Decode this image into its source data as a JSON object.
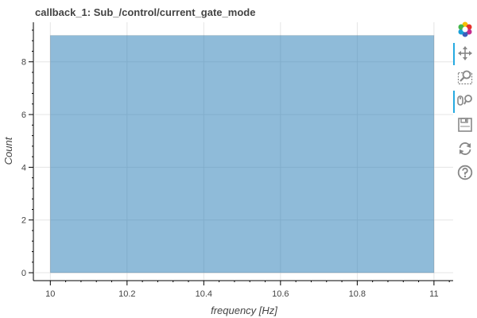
{
  "title": "callback_1: Sub_/control/current_gate_mode",
  "chart_data": {
    "type": "bar",
    "title": "callback_1: Sub_/control/current_gate_mode",
    "xlabel": "frequency [Hz]",
    "ylabel": "Count",
    "bins": [
      {
        "x0": 10,
        "x1": 11,
        "count": 9
      }
    ],
    "xlim": [
      9.96,
      11.05
    ],
    "ylim": [
      -0.3,
      9.5
    ],
    "xticks": [
      10,
      10.2,
      10.4,
      10.6,
      10.8,
      11
    ],
    "xtick_labels": [
      "10",
      "10.2",
      "10.4",
      "10.6",
      "10.8",
      "11"
    ],
    "yticks": [
      0,
      2,
      4,
      6,
      8
    ],
    "ytick_labels": [
      "0",
      "2",
      "4",
      "6",
      "8"
    ],
    "grid": true,
    "bar_color": "#1f77b4",
    "bar_alpha": 0.5
  },
  "toolbar": {
    "tools": [
      {
        "name": "bokeh-logo-icon",
        "active": false,
        "interactable": false
      },
      {
        "name": "pan-icon",
        "active": true,
        "interactable": true
      },
      {
        "name": "box-zoom-icon",
        "active": false,
        "interactable": true
      },
      {
        "name": "wheel-zoom-icon",
        "active": true,
        "interactable": true
      },
      {
        "name": "save-icon",
        "active": false,
        "interactable": true
      },
      {
        "name": "reset-icon",
        "active": false,
        "interactable": true
      },
      {
        "name": "help-icon",
        "active": false,
        "interactable": true
      }
    ]
  }
}
